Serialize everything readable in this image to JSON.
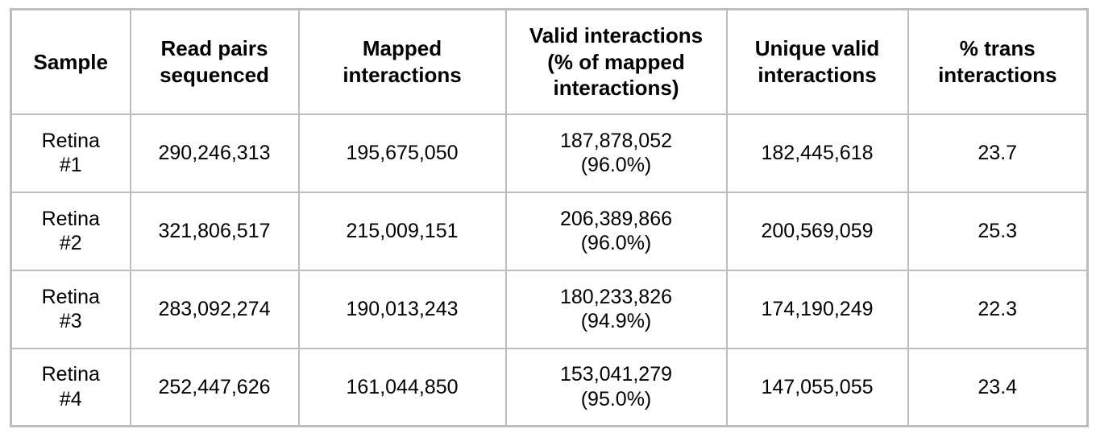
{
  "colors": {
    "border": "#bdbdbd",
    "text": "#000000",
    "background": "#ffffff"
  },
  "table": {
    "columns": {
      "sample": "Sample",
      "read_pairs": "Read pairs\nsequenced",
      "mapped": "Mapped\ninteractions",
      "valid": "Valid interactions\n(% of mapped\ninteractions)",
      "unique": "Unique valid\ninteractions",
      "trans": "% trans\ninteractions"
    },
    "rows": [
      {
        "sample": "Retina\n#1",
        "read_pairs": "290,246,313",
        "mapped": "195,675,050",
        "valid": "187,878,052\n(96.0%)",
        "unique": "182,445,618",
        "trans": "23.7"
      },
      {
        "sample": "Retina\n#2",
        "read_pairs": "321,806,517",
        "mapped": "215,009,151",
        "valid": "206,389,866\n(96.0%)",
        "unique": "200,569,059",
        "trans": "25.3"
      },
      {
        "sample": "Retina\n#3",
        "read_pairs": "283,092,274",
        "mapped": "190,013,243",
        "valid": "180,233,826\n(94.9%)",
        "unique": "174,190,249",
        "trans": "22.3"
      },
      {
        "sample": "Retina\n#4",
        "read_pairs": "252,447,626",
        "mapped": "161,044,850",
        "valid": "153,041,279\n(95.0%)",
        "unique": "147,055,055",
        "trans": "23.4"
      }
    ]
  }
}
